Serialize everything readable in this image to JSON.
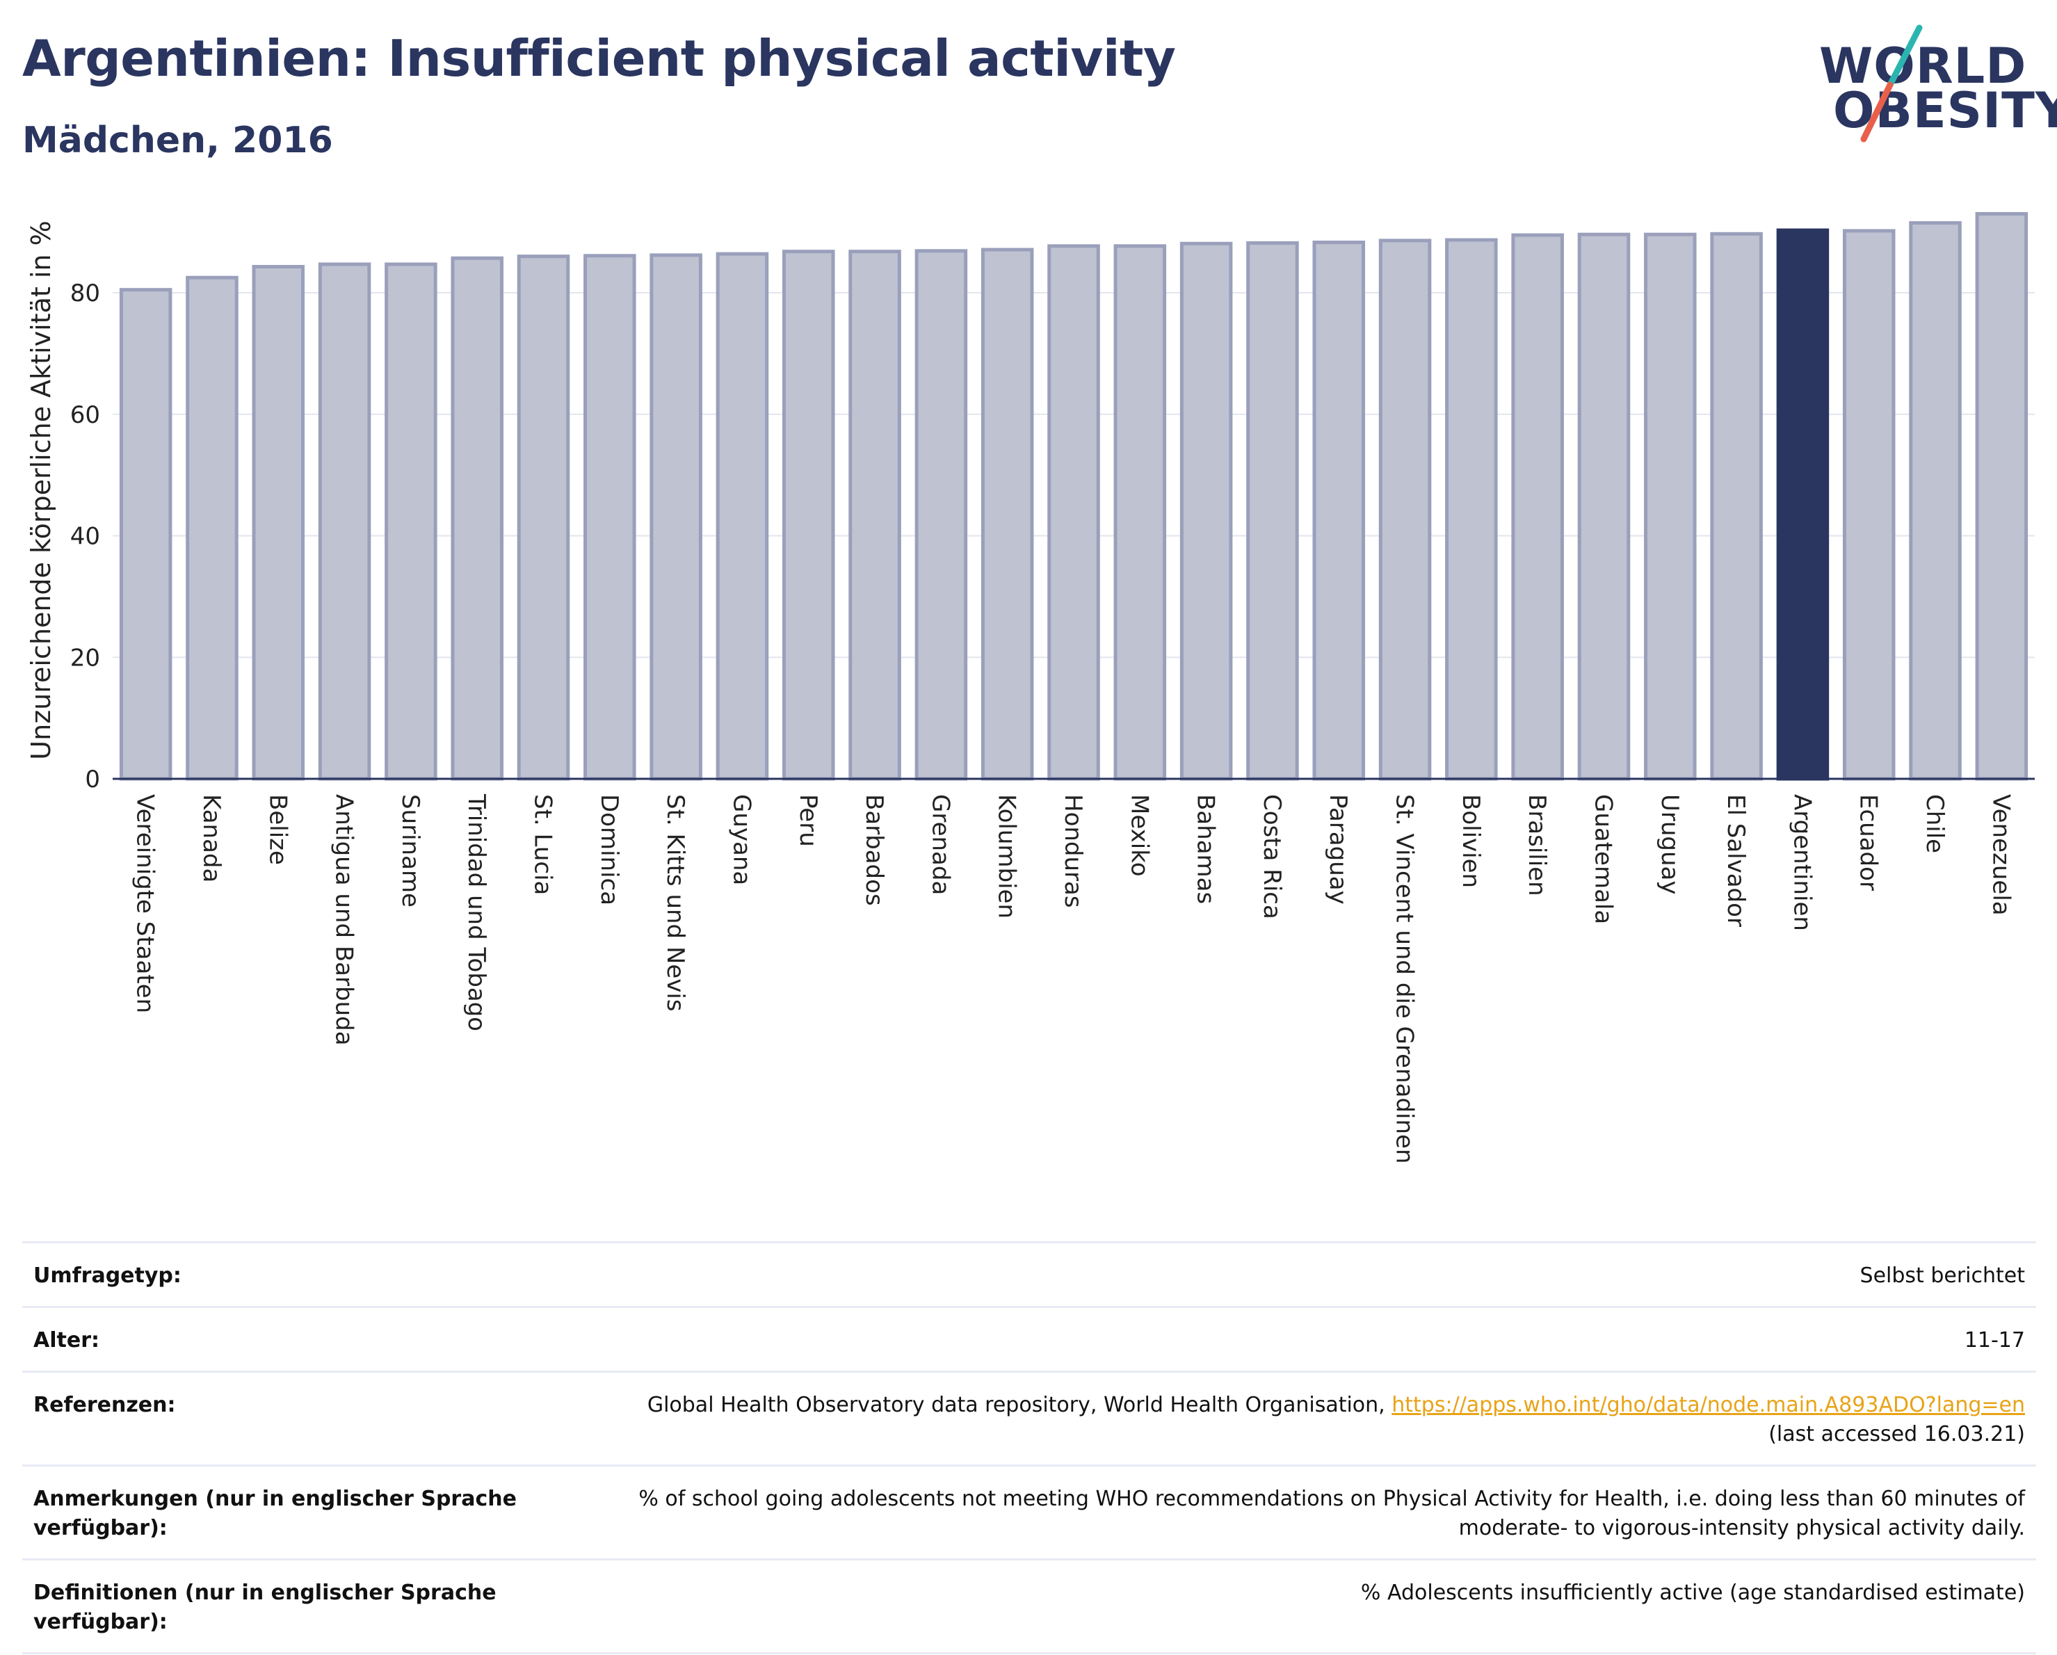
{
  "header": {
    "title": "Argentinien: Insufficient physical activity",
    "subtitle": "Mädchen, 2016"
  },
  "logo": {
    "line1": "WORLD",
    "line2": "OBESITY",
    "accent_colors": [
      "#2cb5b0",
      "#e8604c"
    ]
  },
  "colors": {
    "bar": "#bfc2d0",
    "bar_edge": "#9aa0bb",
    "highlight": "#2a3560",
    "text": "#2a3560",
    "link": "#e8a317"
  },
  "chart_data": {
    "type": "bar",
    "title": "Argentinien: Insufficient physical activity",
    "subtitle": "Mädchen, 2016",
    "xlabel": "",
    "ylabel": "Unzureichende körperliche Aktivität in %",
    "ylim": [
      0,
      95
    ],
    "yticks": [
      0,
      20,
      40,
      60,
      80
    ],
    "grid": true,
    "highlight": "Argentinien",
    "categories": [
      "Vereinigte Staaten",
      "Kanada",
      "Belize",
      "Antigua und Barbuda",
      "Suriname",
      "Trinidad und Tobago",
      "St. Lucia",
      "Dominica",
      "St. Kitts und Nevis",
      "Guyana",
      "Peru",
      "Barbados",
      "Grenada",
      "Kolumbien",
      "Honduras",
      "Mexiko",
      "Bahamas",
      "Costa Rica",
      "Paraguay",
      "St. Vincent und die Grenadinen",
      "Bolivien",
      "Brasilien",
      "Guatemala",
      "Uruguay",
      "El Salvador",
      "Argentinien",
      "Ecuador",
      "Chile",
      "Venezuela"
    ],
    "values": [
      80.5,
      82.5,
      84.3,
      84.7,
      84.7,
      85.7,
      86.0,
      86.1,
      86.2,
      86.4,
      86.8,
      86.8,
      86.9,
      87.1,
      87.7,
      87.7,
      88.1,
      88.2,
      88.3,
      88.6,
      88.7,
      89.5,
      89.6,
      89.6,
      89.7,
      90.3,
      90.2,
      91.5,
      93.0
    ]
  },
  "info_table": [
    {
      "key": "Umfragetyp:",
      "value": "Selbst berichtet"
    },
    {
      "key": "Alter:",
      "value": "11-17"
    },
    {
      "key": "Referenzen:",
      "value": "Global Health Observatory data repository, World Health Organisation,",
      "link": "https://apps.who.int/gho/data/node.main.A893ADO?lang=en",
      "value2": "(last accessed 16.03.21)"
    },
    {
      "key": "Anmerkungen (nur in englischer Sprache verfügbar):",
      "value": "% of school going adolescents not meeting WHO recommendations on Physical Activity for Health, i.e. doing less than 60 minutes of moderate- to vigorous-intensity physical activity daily."
    },
    {
      "key": "Definitionen (nur in englischer Sprache verfügbar):",
      "value": "% Adolescents insufficiently active (age standardised estimate)"
    }
  ]
}
